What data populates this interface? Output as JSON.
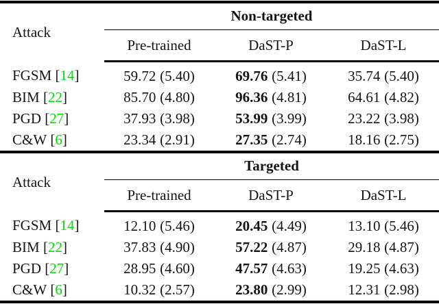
{
  "theme": {
    "citation-color": "#00dd00",
    "text-color": "#141414",
    "rule-color": "#000000",
    "background": "#ffffff"
  },
  "punct": {
    "open": "[",
    "close": "]"
  },
  "tables": [
    {
      "group_header": "Non-targeted",
      "attack_header": "Attack",
      "columns": [
        "Pre-trained",
        "DaST-P",
        "DaST-L"
      ],
      "rows": [
        {
          "attack": "FGSM",
          "ref": "14",
          "cells": [
            {
              "value": "59.72",
              "std": "(5.40)"
            },
            {
              "value": "69.76",
              "std": "(5.41)"
            },
            {
              "value": "35.74",
              "std": "(5.40)"
            }
          ]
        },
        {
          "attack": "BIM",
          "ref": "22",
          "cells": [
            {
              "value": "85.70",
              "std": "(4.80)"
            },
            {
              "value": "96.36",
              "std": "(4.81)"
            },
            {
              "value": "64.61",
              "std": "(4.82)"
            }
          ]
        },
        {
          "attack": "PGD",
          "ref": "27",
          "cells": [
            {
              "value": "37.93",
              "std": "(3.98)"
            },
            {
              "value": "53.99",
              "std": "(3.99)"
            },
            {
              "value": "23.22",
              "std": "(3.98)"
            }
          ]
        },
        {
          "attack": "C&W",
          "ref": "6",
          "cells": [
            {
              "value": "23.34",
              "std": "(2.91)"
            },
            {
              "value": "27.35",
              "std": "(2.74)"
            },
            {
              "value": "18.16",
              "std": "(2.75)"
            }
          ]
        }
      ]
    },
    {
      "group_header": "Targeted",
      "attack_header": "Attack",
      "columns": [
        "Pre-trained",
        "DaST-P",
        "DaST-L"
      ],
      "rows": [
        {
          "attack": "FGSM",
          "ref": "14",
          "cells": [
            {
              "value": "12.10",
              "std": "(5.46)"
            },
            {
              "value": "20.45",
              "std": "(4.49)"
            },
            {
              "value": "13.10",
              "std": "(5.46)"
            }
          ]
        },
        {
          "attack": "BIM",
          "ref": "22",
          "cells": [
            {
              "value": "37.83",
              "std": "(4.90)"
            },
            {
              "value": "57.22",
              "std": "(4.87)"
            },
            {
              "value": "29.18",
              "std": "(4.87)"
            }
          ]
        },
        {
          "attack": "PGD",
          "ref": "27",
          "cells": [
            {
              "value": "28.95",
              "std": "(4.60)"
            },
            {
              "value": "47.57",
              "std": "(4.63)"
            },
            {
              "value": "19.25",
              "std": "(4.63)"
            }
          ]
        },
        {
          "attack": "C&W",
          "ref": "6",
          "cells": [
            {
              "value": "10.32",
              "std": "(2.57)"
            },
            {
              "value": "23.80",
              "std": "(2.99)"
            },
            {
              "value": "12.31",
              "std": "(2.98)"
            }
          ]
        }
      ]
    }
  ]
}
